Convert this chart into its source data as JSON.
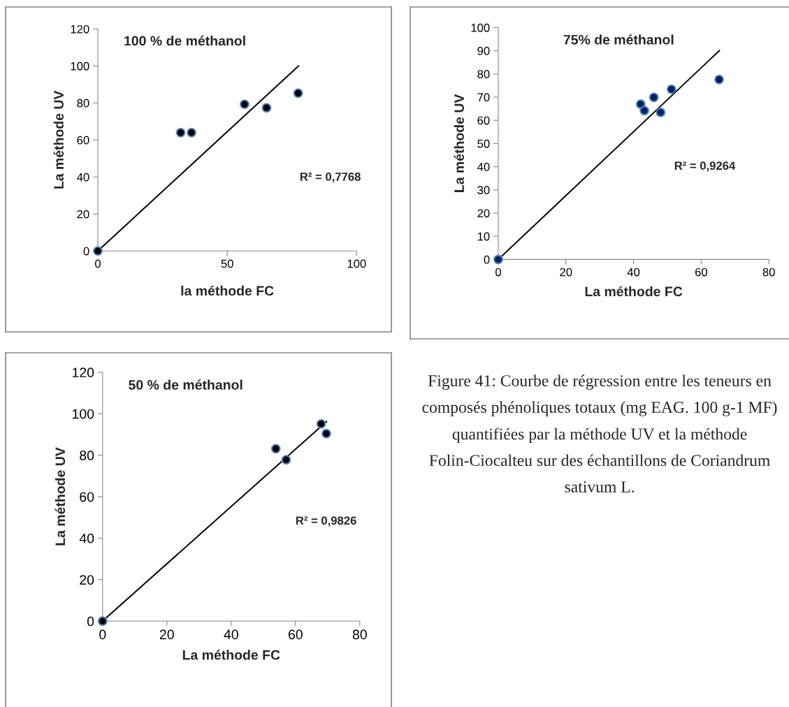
{
  "chart_data": [
    {
      "type": "scatter",
      "title": "100 % de méthanol",
      "xlabel": "la méthode FC",
      "ylabel": "La méthode UV",
      "xlim": [
        0,
        100
      ],
      "xticks": [
        0,
        50,
        100
      ],
      "ylim": [
        0,
        120
      ],
      "yticks": [
        0,
        20,
        40,
        60,
        80,
        100,
        120
      ],
      "grid": false,
      "legend": false,
      "marker": "circle",
      "annotations": [
        "R² = 0,7768"
      ],
      "series": [
        {
          "color": "#000000",
          "x": [
            0,
            32.0,
            36.2,
            56.7,
            65.2,
            77.4
          ],
          "values": [
            0,
            64.0,
            64.0,
            79.3,
            77.4,
            85.3
          ]
        },
        {
          "type": "line",
          "marker": "none",
          "color": "#000000",
          "x": [
            0,
            77.6
          ],
          "values": [
            0,
            100.1
          ]
        }
      ]
    },
    {
      "type": "scatter",
      "title": "75% de méthanol",
      "xlabel": "La méthode FC",
      "ylabel": "La méthode UV",
      "xlim": [
        0,
        80
      ],
      "xticks": [
        0,
        20,
        40,
        60,
        80
      ],
      "ylim": [
        0,
        100
      ],
      "yticks": [
        0,
        10,
        20,
        30,
        40,
        50,
        60,
        70,
        80,
        90,
        100
      ],
      "grid": false,
      "legend": false,
      "marker": "circle",
      "annotations": [
        "R² = 0,9264"
      ],
      "series": [
        {
          "color": "#002060",
          "x": [
            0,
            42.1,
            43.2,
            46.0,
            48.0,
            51.2,
            65.3
          ],
          "values": [
            0,
            67.0,
            64.2,
            69.9,
            63.4,
            73.4,
            77.6
          ]
        },
        {
          "type": "line",
          "marker": "none",
          "color": "#000000",
          "x": [
            0,
            65.4
          ],
          "values": [
            0,
            90.1
          ]
        }
      ]
    },
    {
      "type": "scatter",
      "title": "50 % de méthanol",
      "xlabel": "La méthode FC",
      "ylabel": "La méthode UV",
      "xlim": [
        0,
        80
      ],
      "xticks": [
        0,
        20,
        40,
        60,
        80
      ],
      "ylim": [
        0,
        120
      ],
      "yticks": [
        0,
        20,
        40,
        60,
        80,
        100,
        120
      ],
      "grid": false,
      "legend": false,
      "marker": "circle",
      "annotations": [
        "R² = 0,9826",
        "Figure 41: Courbe de régression entre les teneurs en composés phénoliques totaux (mg EAG. 100 g-1 MF) quantifiées par la méthode UV et la méthode Folin-Ciocalteu sur des échantillons de Coriandrum sativum L."
      ],
      "series": [
        {
          "color": "#000000",
          "x": [
            0,
            53.9,
            57.1,
            68.0,
            69.6
          ],
          "values": [
            0,
            83.1,
            77.8,
            95.1,
            90.4
          ]
        },
        {
          "type": "line",
          "marker": "none",
          "color": "#000000",
          "x": [
            0,
            69.7
          ],
          "values": [
            0,
            96.3
          ]
        }
      ]
    }
  ]
}
